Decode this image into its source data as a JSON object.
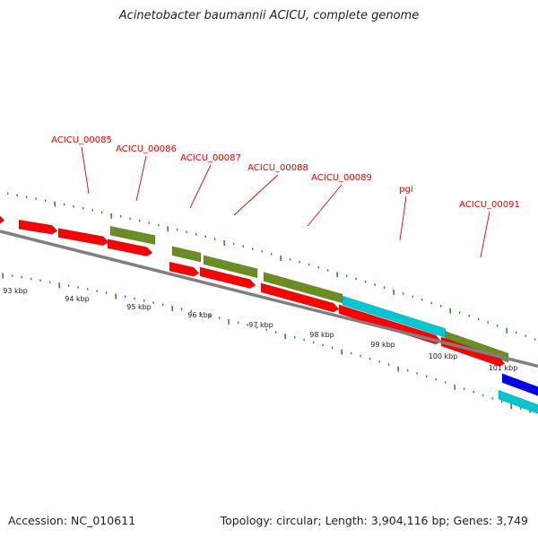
{
  "title": "Acinetobacter baumannii ACICU, complete genome",
  "accession": "Accession: NC_010611",
  "summary": "Topology: circular; Length: 3,904,116 bp; Genes: 3,749",
  "colors": {
    "forward_cds": "#ff0000",
    "other_cds": "#6b8e23",
    "highlight_cds": "#00c8d2",
    "blue_cds": "#0000ee",
    "backbone": "#7f7f7f",
    "ticks": "#2f8f2f",
    "gene_labels": "#e00000"
  },
  "scale_labels": [
    "93 kbp",
    "94 kbp",
    "95 kbp",
    "96 kbp",
    "97 kbp",
    "98 kbp",
    "99 kbp",
    "100 kbp",
    "101 kbp"
  ],
  "gene_labels": [
    "ACICU_00085",
    "ACICU_00086",
    "ACICU_00087",
    "ACICU_00088",
    "ACICU_00089",
    "pgi",
    "ACICU_00091"
  ]
}
